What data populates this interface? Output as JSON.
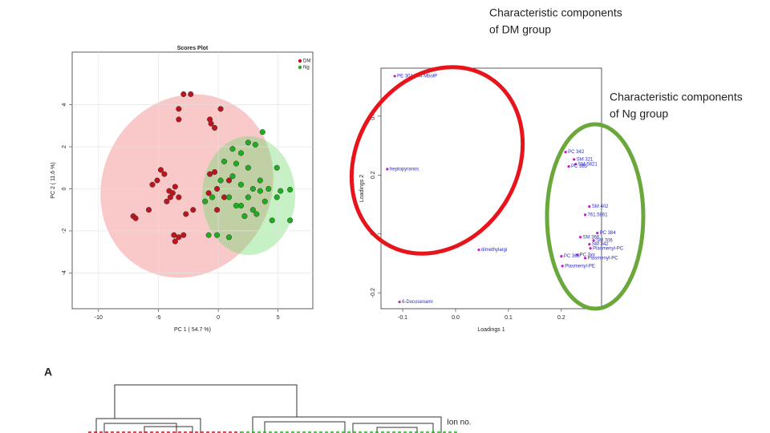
{
  "annotations": [
    "Characteristic components",
    "of DM group",
    "Characteristic components",
    "of Ng group"
  ],
  "panel_label": "A",
  "dendrogram_label": "Ion no.",
  "chart_data": [
    {
      "type": "scatter",
      "title": "Scores Plot",
      "x_label": "PC 1 ( 54.7 %)",
      "y_label": "PC 2 ( 11.6 %)",
      "xlim": [
        -12.2,
        7.9
      ],
      "ylim": [
        -5.7,
        6.5
      ],
      "xticks": [
        -10,
        -5,
        0,
        5
      ],
      "yticks": [
        -4,
        -2,
        0,
        2,
        4
      ],
      "grid": true,
      "legend": "top-right",
      "series": [
        {
          "name": "DM",
          "color": "#c0141c",
          "x": [
            -2.9,
            -2.3,
            -3.3,
            -3.3,
            -0.7,
            -0.6,
            0.2,
            -0.3,
            -4.8,
            -5.1,
            -5.5,
            -4.5,
            -4.1,
            -4.0,
            -3.8,
            -4.3,
            -3.3,
            -3.6,
            -7.1,
            -6.9,
            -5.8,
            -2.7,
            -2.1,
            -0.7,
            -0.3,
            -0.8,
            -0.1,
            0.5,
            -3.7,
            -3.3,
            -2.9,
            -3.6,
            -0.1,
            0.9
          ],
          "y": [
            4.5,
            4.5,
            3.8,
            3.3,
            3.3,
            3.1,
            3.8,
            2.9,
            0.9,
            0.4,
            0.2,
            0.7,
            -0.1,
            -0.4,
            -0.2,
            -0.6,
            -0.4,
            0.1,
            -1.3,
            -1.4,
            -1.0,
            -1.2,
            -1.0,
            0.7,
            0.8,
            -0.2,
            0.0,
            -0.4,
            -2.2,
            -2.3,
            -2.2,
            -2.5,
            -1.0,
            0.4
          ]
        },
        {
          "name": "Ng",
          "color": "#1fae1f",
          "x": [
            3.7,
            2.5,
            3.1,
            1.2,
            1.9,
            0.5,
            1.5,
            2.5,
            4.9,
            1.2,
            0.2,
            1.9,
            2.9,
            3.5,
            4.2,
            5.2,
            6.0,
            2.5,
            3.9,
            4.9,
            -1.1,
            -0.5,
            0.9,
            1.9,
            3.2,
            4.5,
            6.0,
            2.2,
            -0.8,
            -0.1,
            0.9,
            1.5,
            3.5,
            2.9
          ],
          "y": [
            2.7,
            2.2,
            2.1,
            1.9,
            1.7,
            1.3,
            1.2,
            1.0,
            1.0,
            0.6,
            0.4,
            0.2,
            0.0,
            -0.1,
            0.0,
            -0.1,
            -0.04,
            -0.4,
            -0.6,
            -0.4,
            -0.6,
            -0.4,
            -0.4,
            -0.8,
            -1.2,
            -1.5,
            -1.5,
            -1.3,
            -2.2,
            -2.2,
            -2.3,
            -0.8,
            0.4,
            -1.0
          ]
        }
      ]
    },
    {
      "type": "scatter",
      "x_label": "Loadings 1",
      "y_label": "Loadings 2",
      "xlim": [
        -0.141,
        0.276
      ],
      "ylim": [
        -0.254,
        0.563
      ],
      "xticks": [
        -0.1,
        {
          "value": 0,
          "label": "0.0"
        },
        0.1,
        0.2
      ],
      "yticks": [
        -0.2,
        0,
        0.2,
        0.4
      ],
      "grid": false,
      "series": [
        {
          "color": "#c020c0",
          "labels": [
            "PE 301 344 MbolP",
            "heptopyranos",
            "dimethylargi",
            "6-Docosenami",
            "PC 342",
            "SM 321",
            "SM 5821",
            "PC 385",
            "SM 402",
            "761.5861",
            "PC 384",
            "SM 366",
            "SM 706",
            "SM 342",
            "Plasmenyl-PC",
            "PC 3xx",
            "PC 368",
            "Plasmenyl-PC",
            "Plasmenyl-PE"
          ],
          "x": [
            -0.115,
            -0.129,
            0.044,
            -0.106,
            0.208,
            0.224,
            0.227,
            0.214,
            0.253,
            0.245,
            0.268,
            0.236,
            0.261,
            0.253,
            0.255,
            0.23,
            0.2,
            0.245,
            0.202
          ],
          "y": [
            0.536,
            0.22,
            -0.054,
            -0.231,
            0.278,
            0.253,
            0.237,
            0.229,
            0.093,
            0.065,
            0.003,
            -0.011,
            -0.022,
            -0.035,
            -0.049,
            -0.071,
            -0.076,
            -0.082,
            -0.109
          ]
        }
      ]
    }
  ]
}
